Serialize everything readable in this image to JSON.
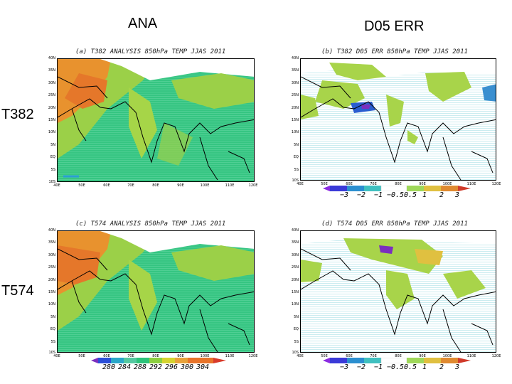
{
  "column_titles": {
    "left": "ANA",
    "right": "D05 ERR"
  },
  "row_labels": {
    "top": "T382",
    "bottom": "T574"
  },
  "panels": {
    "a": {
      "title": "(a) T382 ANALYSIS 850hPa TEMP JJAS 2011"
    },
    "b": {
      "title": "(b) T382 D05 ERR 850hPa TEMP JJAS 2011"
    },
    "c": {
      "title": "(c) T574 ANALYSIS 850hPa TEMP JJAS 2011"
    },
    "d": {
      "title": "(d) T574 D05 ERR 850hPa TEMP JJAS 2011"
    }
  },
  "lat_labels": [
    "40N",
    "35N",
    "30N",
    "25N",
    "20N",
    "15N",
    "10N",
    "5N",
    "EQ",
    "5S",
    "10S"
  ],
  "lon_labels": [
    "40E",
    "50E",
    "60E",
    "70E",
    "80E",
    "90E",
    "100E",
    "110E",
    "120E"
  ],
  "colorbars": {
    "ana": {
      "labels": [
        "280",
        "284",
        "288",
        "292",
        "296",
        "300",
        "304"
      ],
      "colors": [
        "#7b2fbe",
        "#2b4fd8",
        "#2aa7c9",
        "#54c8a0",
        "#2cc37a",
        "#8ccf3f",
        "#d6d42f",
        "#e8a23a",
        "#e8742a",
        "#d83a2a"
      ]
    },
    "err": {
      "labels": [
        "−3",
        "−2",
        "−1",
        "−0.5",
        "0.5",
        "1",
        "2",
        "3"
      ],
      "colors": [
        "#8a2be2",
        "#3a3ad8",
        "#2b8fd0",
        "#40c0c0",
        "#ffffff",
        "#9fd85a",
        "#e0c040",
        "#e08a30",
        "#d03a2a"
      ]
    }
  },
  "colors": {
    "land_warm": "#e87a2a",
    "land_mid": "#c8d23a",
    "land_cool": "#3ac88a",
    "ocean_fill": "#34c380",
    "error_pos": "#a8d44a",
    "error_neg": "#2a9fd0",
    "coast": "#000000"
  }
}
